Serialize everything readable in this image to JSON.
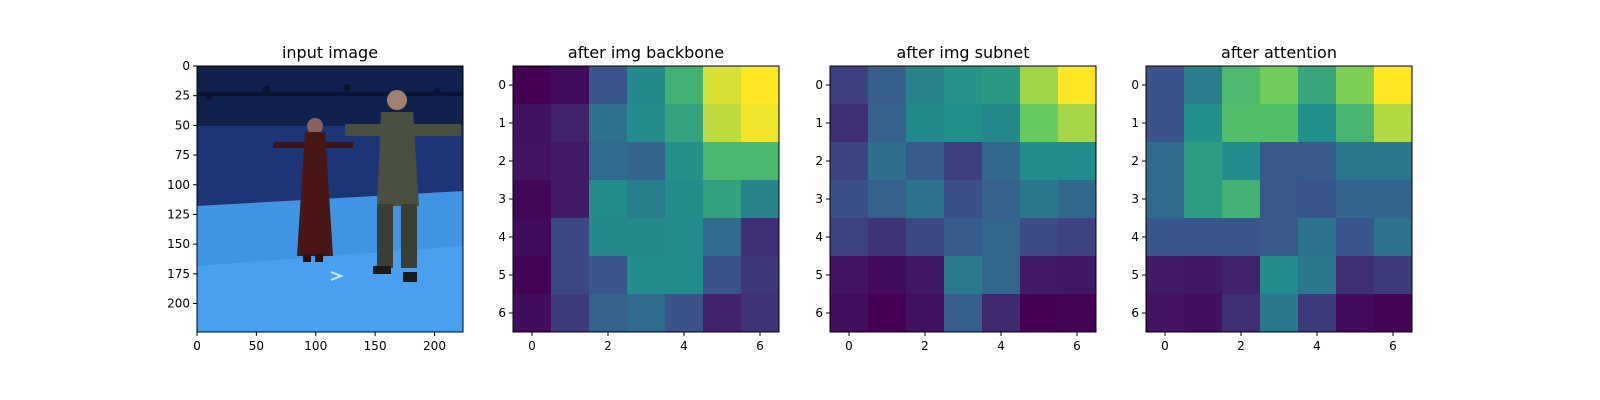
{
  "chart_data": [
    {
      "type": "image",
      "title": "input image",
      "x_ticks": [
        "0",
        "50",
        "100",
        "150",
        "200"
      ],
      "y_ticks": [
        "0",
        "25",
        "50",
        "75",
        "100",
        "125",
        "150",
        "175",
        "200"
      ],
      "xlim": [
        0,
        224
      ],
      "ylim": [
        0,
        224
      ]
    },
    {
      "type": "heatmap",
      "title": "after img backbone",
      "x_ticks": [
        "0",
        "2",
        "4",
        "6"
      ],
      "y_ticks": [
        "0",
        "1",
        "2",
        "3",
        "4",
        "5",
        "6"
      ],
      "colormap": "viridis",
      "values": [
        [
          0.0,
          0.03,
          0.26,
          0.47,
          0.64,
          0.94,
          1.0
        ],
        [
          0.05,
          0.1,
          0.37,
          0.48,
          0.58,
          0.9,
          0.98
        ],
        [
          0.06,
          0.08,
          0.35,
          0.32,
          0.51,
          0.67,
          0.67
        ],
        [
          0.02,
          0.08,
          0.49,
          0.43,
          0.49,
          0.57,
          0.44
        ],
        [
          0.03,
          0.22,
          0.47,
          0.47,
          0.48,
          0.35,
          0.14
        ],
        [
          0.01,
          0.22,
          0.27,
          0.49,
          0.49,
          0.25,
          0.17
        ],
        [
          0.03,
          0.18,
          0.31,
          0.35,
          0.25,
          0.1,
          0.15
        ]
      ]
    },
    {
      "type": "heatmap",
      "title": "after img subnet",
      "x_ticks": [
        "0",
        "2",
        "4",
        "6"
      ],
      "y_ticks": [
        "0",
        "1",
        "2",
        "3",
        "4",
        "5",
        "6"
      ],
      "colormap": "viridis",
      "values": [
        [
          0.19,
          0.3,
          0.44,
          0.52,
          0.54,
          0.85,
          1.0
        ],
        [
          0.14,
          0.31,
          0.47,
          0.5,
          0.47,
          0.76,
          0.86
        ],
        [
          0.21,
          0.36,
          0.29,
          0.19,
          0.34,
          0.48,
          0.48
        ],
        [
          0.24,
          0.31,
          0.38,
          0.24,
          0.31,
          0.4,
          0.34
        ],
        [
          0.2,
          0.16,
          0.22,
          0.29,
          0.33,
          0.23,
          0.2
        ],
        [
          0.06,
          0.03,
          0.07,
          0.41,
          0.33,
          0.08,
          0.07
        ],
        [
          0.04,
          0.0,
          0.05,
          0.3,
          0.12,
          0.0,
          0.01
        ]
      ]
    },
    {
      "type": "heatmap",
      "title": "after attention",
      "x_ticks": [
        "0",
        "2",
        "4",
        "6"
      ],
      "y_ticks": [
        "0",
        "1",
        "2",
        "3",
        "4",
        "5",
        "6"
      ],
      "colormap": "viridis",
      "values": [
        [
          0.25,
          0.42,
          0.68,
          0.78,
          0.6,
          0.8,
          1.0
        ],
        [
          0.25,
          0.5,
          0.7,
          0.7,
          0.5,
          0.66,
          0.88
        ],
        [
          0.35,
          0.55,
          0.48,
          0.28,
          0.28,
          0.4,
          0.4
        ],
        [
          0.35,
          0.55,
          0.64,
          0.28,
          0.26,
          0.32,
          0.32
        ],
        [
          0.26,
          0.26,
          0.26,
          0.28,
          0.38,
          0.26,
          0.38
        ],
        [
          0.08,
          0.07,
          0.1,
          0.48,
          0.4,
          0.14,
          0.18
        ],
        [
          0.06,
          0.04,
          0.14,
          0.4,
          0.18,
          0.03,
          0.01
        ]
      ]
    }
  ]
}
